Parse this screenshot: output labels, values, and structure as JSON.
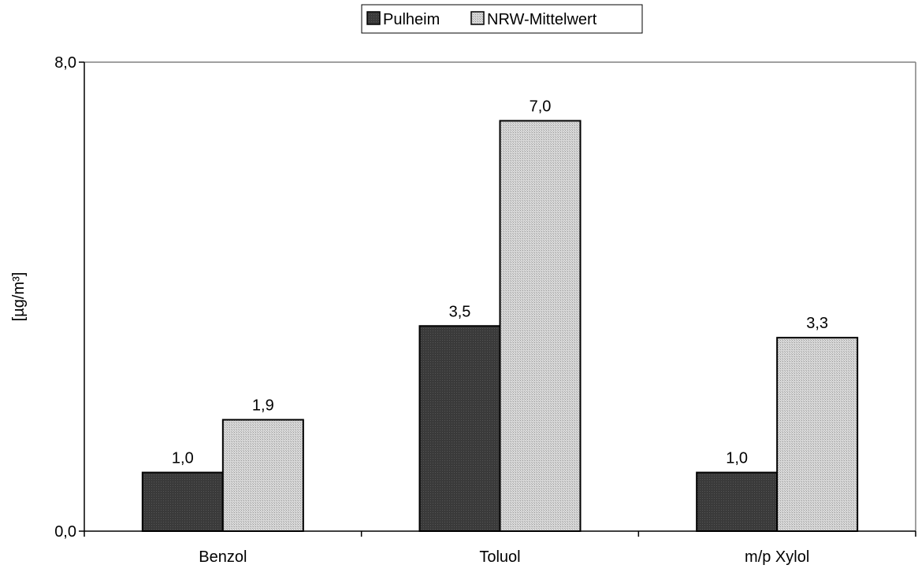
{
  "chart_data": {
    "type": "bar",
    "categories": [
      "Benzol",
      "Toluol",
      "m/p Xylol"
    ],
    "series": [
      {
        "name": "Pulheim",
        "values": [
          1.0,
          3.5,
          1.0
        ],
        "data_labels": [
          "1,0",
          "3,5",
          "1,0"
        ],
        "color": "#3c3c3c",
        "pattern": "solid-dark"
      },
      {
        "name": "NRW-Mittelwert",
        "values": [
          1.9,
          7.0,
          3.3
        ],
        "data_labels": [
          "1,9",
          "7,0",
          "3,3"
        ],
        "color": "#c8c8c8",
        "pattern": "dotted-light"
      }
    ],
    "ylabel": "[µg/m³]",
    "xlabel": "",
    "ylim": [
      0,
      8
    ],
    "y_ticks": [
      0,
      8
    ],
    "y_tick_labels": [
      "0,0",
      "8,0"
    ],
    "legend_position": "top-center",
    "grid": false
  }
}
